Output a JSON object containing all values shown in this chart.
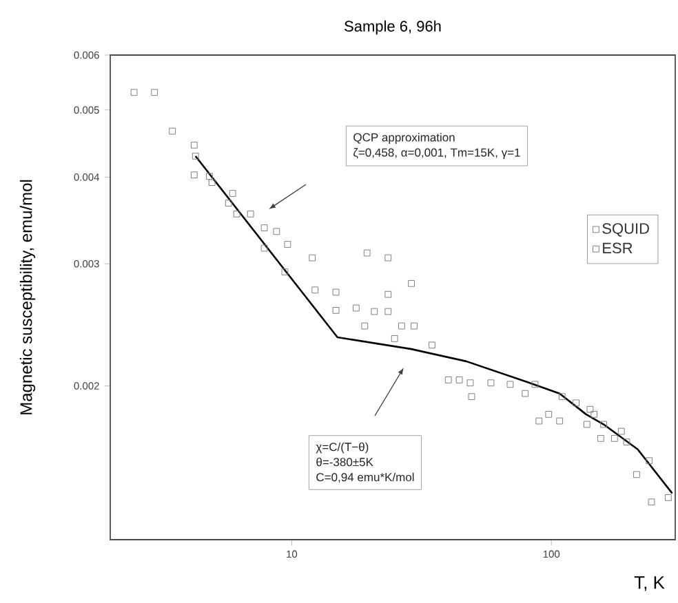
{
  "chart_data": {
    "type": "scatter",
    "title": "Sample 6, 96h",
    "xlabel": "T, K",
    "ylabel": "Magnetic susceptibility, emu/mol",
    "log": "xy",
    "xlim": [
      2,
      300
    ],
    "ylim": [
      0.0012,
      0.006
    ],
    "xticks": [
      10,
      100
    ],
    "yticks": [
      0.002,
      0.003,
      0.004,
      0.005,
      0.006
    ],
    "legend": "right",
    "annotations": [
      "QCP approximation",
      "ζ=0,458, α=0,001, Tm=15K, γ=1",
      "χ=C/(T−θ)",
      "θ=-380±5K",
      "C=0,94 emu*K/mol"
    ],
    "series": [
      {
        "name": "SQUID",
        "marker": "square",
        "color": "#7f7f7f",
        "x": [
          2.47,
          2.96,
          3.47,
          4.21,
          4.26,
          4.82,
          4.93,
          5.92,
          5.71,
          6.14,
          7.84,
          8.74,
          9.64,
          12.0,
          12.3,
          14.8,
          14.8,
          17.7,
          20.8,
          23.5,
          34.7,
          58.5,
          69.4,
          86.5,
          110,
          124.5,
          141,
          146,
          159,
          186,
          195,
          238,
          282
        ],
        "values": [
          0.0053,
          0.0053,
          0.00466,
          0.00445,
          0.00429,
          0.00401,
          0.00393,
          0.00379,
          0.00367,
          0.00354,
          0.00338,
          0.00334,
          0.0032,
          0.00306,
          0.00275,
          0.00273,
          0.00257,
          0.00259,
          0.00256,
          0.00256,
          0.00229,
          0.00202,
          0.00201,
          0.00201,
          0.00193,
          0.00189,
          0.00185,
          0.00182,
          0.00176,
          0.00172,
          0.00166,
          0.00156,
          0.00138
        ]
      },
      {
        "name": "ESR",
        "marker": "square",
        "color": "#7f7f7f",
        "x": [
          4.21,
          6.94,
          7.84,
          9.41,
          19.5,
          23.5,
          28.9,
          23.5,
          19.1,
          24.9,
          26.5,
          29.6,
          40.1,
          44.2,
          48.7,
          49.3,
          79.3,
          89.6,
          97.6,
          107.6,
          137,
          155,
          175,
          213,
          243
        ],
        "values": [
          0.00403,
          0.00354,
          0.00316,
          0.00292,
          0.00311,
          0.00306,
          0.00281,
          0.00271,
          0.00244,
          0.00234,
          0.00244,
          0.00244,
          0.00204,
          0.00204,
          0.00202,
          0.00193,
          0.00195,
          0.00178,
          0.00182,
          0.00178,
          0.00176,
          0.00168,
          0.00168,
          0.00149,
          0.00136
        ]
      },
      {
        "type": "line",
        "marker": "none",
        "color": "#000000",
        "x": [
          4.26,
          15,
          28.9,
          47,
          76.5,
          107.6,
          136,
          159,
          215,
          292
        ],
        "values": [
          0.00429,
          0.00235,
          0.00226,
          0.00217,
          0.00204,
          0.00195,
          0.00182,
          0.00176,
          0.00162,
          0.0014
        ]
      }
    ]
  }
}
